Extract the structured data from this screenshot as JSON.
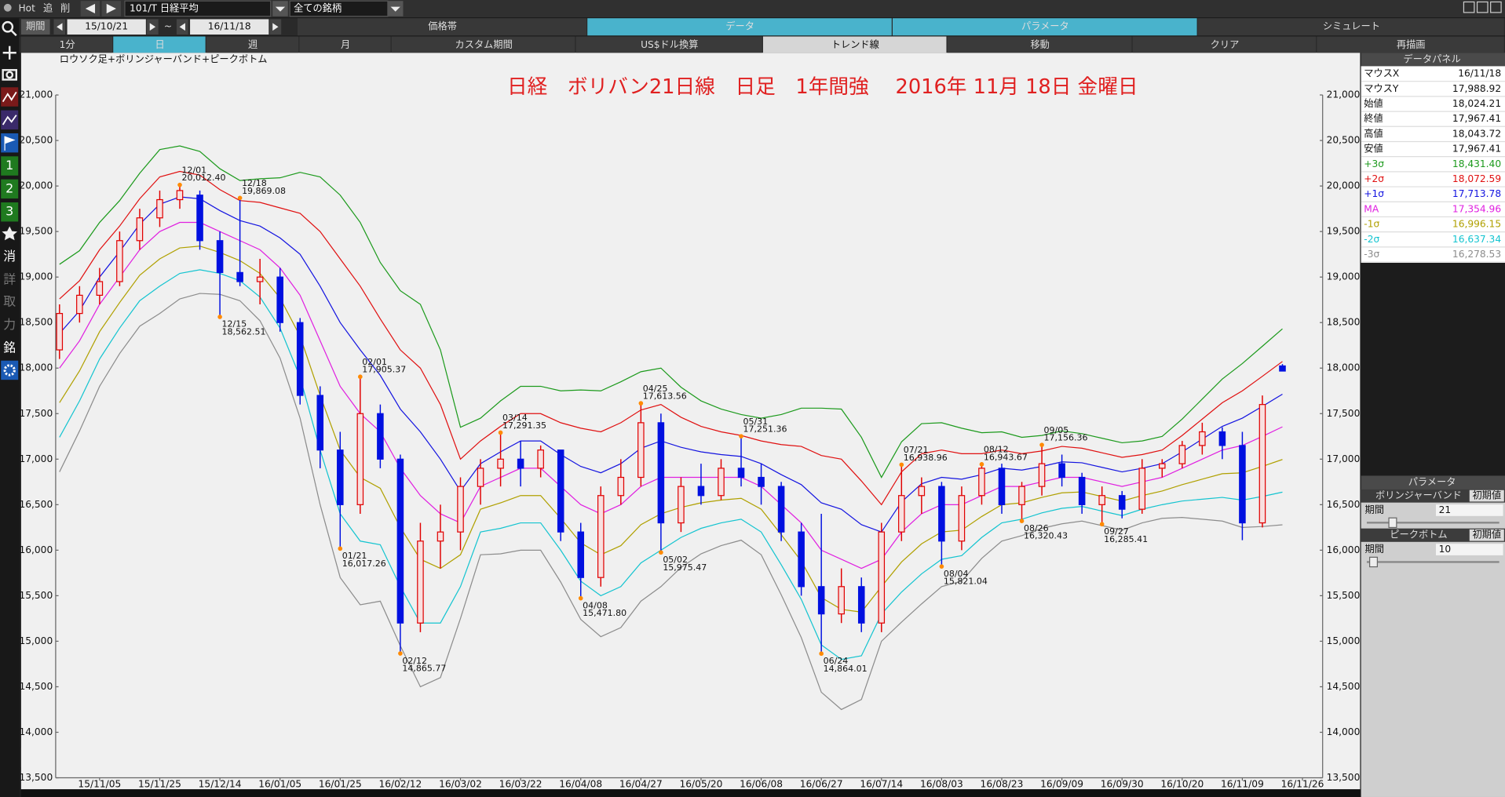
{
  "toolbar": {
    "quick": [
      "Hot",
      "追",
      "削"
    ],
    "symbol": "101/T 日経平均",
    "universe": "全ての銘柄",
    "period_label": "期間",
    "from": "15/10/21",
    "tilde": "~",
    "to": "16/11/18",
    "tabs": [
      "価格帯",
      "データ",
      "パラメータ",
      "シミュレート"
    ],
    "buttons": [
      "1分",
      "日",
      "週",
      "月",
      "カスタム期間",
      "US$ドル換算",
      "トレンド線",
      "移動",
      "クリア",
      "再描画"
    ]
  },
  "sidebar": [
    "1",
    "2",
    "3",
    "消",
    "詳",
    "取",
    "力",
    "銘"
  ],
  "data_panel": {
    "title": "データパネル",
    "rows": [
      [
        "マウスX",
        "16/11/18"
      ],
      [
        "マウスY",
        "17,988.92"
      ],
      [
        "始値",
        "18,024.21"
      ],
      [
        "終値",
        "17,967.41"
      ],
      [
        "高値",
        "18,043.72"
      ],
      [
        "安値",
        "17,967.41"
      ]
    ],
    "band_values": [
      "18,431.40",
      "18,072.59",
      "17,713.78",
      "17,354.96",
      "16,996.15",
      "16,637.34",
      "16,278.53"
    ]
  },
  "parameter_panel": {
    "title": "パラメータ",
    "groups": [
      {
        "name": "ボリンジャーバンド",
        "reset": "初期値",
        "label": "期間",
        "value": "21"
      },
      {
        "name": "ピークボトム",
        "reset": "初期値",
        "label": "期間",
        "value": "10"
      }
    ]
  },
  "chart_data": {
    "type": "candlestick",
    "title": "日経　ボリバン21日線　日足　1年間強　 2016年 11月 18日 金曜日",
    "subtitle": "ロウソク足+ボリンジャーバンド+ピークボトム",
    "up_color": "#e00000",
    "down_color": "#0010e0",
    "categories": [
      null,
      null,
      "15/11/05",
      null,
      null,
      "15/11/25",
      null,
      null,
      "15/12/14",
      null,
      null,
      "16/01/05",
      null,
      null,
      "16/01/25",
      null,
      null,
      "16/02/12",
      null,
      null,
      "16/03/02",
      null,
      null,
      "16/03/22",
      null,
      null,
      "16/04/08",
      null,
      null,
      "16/04/27",
      null,
      null,
      "16/05/20",
      null,
      null,
      "16/06/08",
      null,
      null,
      "16/06/27",
      null,
      null,
      "16/07/14",
      null,
      null,
      "16/08/03",
      null,
      null,
      "16/08/23",
      null,
      null,
      "16/09/09",
      null,
      null,
      "16/09/30",
      null,
      null,
      "16/10/20",
      null,
      null,
      "16/11/09",
      null,
      null,
      "16/11/26"
    ],
    "open": [
      18200,
      18600,
      18800,
      18950,
      19400,
      19650,
      19850,
      19900,
      19400,
      19050,
      18950,
      19000,
      18500,
      17700,
      17100,
      16500,
      17500,
      17000,
      15200,
      16100,
      16200,
      16700,
      16900,
      17000,
      16900,
      17100,
      16200,
      15700,
      16600,
      16800,
      17400,
      16300,
      16700,
      16600,
      16900,
      16800,
      16700,
      16200,
      15600,
      15300,
      15600,
      15200,
      16200,
      16600,
      16700,
      16100,
      16600,
      16900,
      16500,
      16700,
      16950,
      16800,
      16500,
      16600,
      16450,
      16900,
      16950,
      17150,
      17300,
      17150,
      16300,
      18024.21,
      null
    ],
    "high": [
      18700,
      18900,
      19100,
      19500,
      19750,
      19950,
      20012.4,
      19950,
      19500,
      19869.08,
      19200,
      19100,
      18550,
      17800,
      17300,
      17905.37,
      17600,
      17050,
      16300,
      16500,
      16800,
      17000,
      17291.35,
      17200,
      17150,
      17100,
      16300,
      16700,
      17000,
      17613.56,
      17500,
      16800,
      16950,
      17000,
      17251.36,
      16950,
      16750,
      16300,
      16400,
      15800,
      15700,
      16300,
      16938.96,
      16800,
      16750,
      16700,
      16943.67,
      16950,
      16750,
      17156.36,
      17050,
      16850,
      16700,
      16650,
      17000,
      17000,
      17200,
      17400,
      17350,
      17300,
      17700,
      18043.72,
      null
    ],
    "low": [
      18100,
      18500,
      18700,
      18900,
      19300,
      19550,
      19750,
      19300,
      18562.51,
      18900,
      18700,
      18400,
      17600,
      16900,
      16017.26,
      16400,
      16900,
      14865.77,
      15100,
      15800,
      16000,
      16500,
      16700,
      16700,
      16800,
      16100,
      15471.8,
      15600,
      16500,
      16700,
      15975.47,
      16200,
      16500,
      16550,
      16700,
      16500,
      16100,
      15500,
      14864.01,
      15200,
      15100,
      15100,
      16100,
      16400,
      15821.04,
      16000,
      16500,
      16400,
      16320.43,
      16600,
      16700,
      16400,
      16285.41,
      16350,
      16400,
      16800,
      16900,
      17050,
      17000,
      16110,
      16250,
      17967.41,
      null
    ],
    "close": [
      18600,
      18800,
      18950,
      19400,
      19650,
      19850,
      19950,
      19400,
      19050,
      18950,
      19000,
      18500,
      17700,
      17100,
      16500,
      17500,
      17000,
      15200,
      16100,
      16200,
      16700,
      16900,
      17000,
      16900,
      17100,
      16200,
      15700,
      16600,
      16800,
      17400,
      16300,
      16700,
      16600,
      16900,
      16800,
      16700,
      16200,
      15600,
      15300,
      15600,
      15200,
      16200,
      16600,
      16700,
      16100,
      16600,
      16900,
      16500,
      16700,
      16950,
      16800,
      16500,
      16600,
      16450,
      16900,
      16950,
      17150,
      17300,
      17150,
      16300,
      17600,
      17967.41,
      null
    ],
    "series": [
      {
        "name": "+3σ",
        "color": "#1c9a1c",
        "values": [
          19140,
          19290,
          19600,
          19840,
          20140,
          20400,
          20440,
          20380,
          20190,
          20060,
          20080,
          20090,
          20150,
          20100,
          19900,
          19600,
          19160,
          18850,
          18700,
          18200,
          17350,
          17450,
          17640,
          17800,
          17800,
          17750,
          17760,
          17750,
          17850,
          17960,
          18000,
          17790,
          17640,
          17550,
          17490,
          17450,
          17490,
          17560,
          17560,
          17550,
          17240,
          16800,
          17190,
          17390,
          17400,
          17340,
          17290,
          17300,
          17240,
          17260,
          17310,
          17280,
          17230,
          17180,
          17200,
          17250,
          17440,
          17660,
          17880,
          18050,
          18240,
          18431.4,
          null
        ]
      },
      {
        "name": "+2σ",
        "color": "#e01010",
        "values": [
          18760,
          18960,
          19300,
          19560,
          19860,
          20100,
          20160,
          20120,
          19960,
          19840,
          19820,
          19760,
          19700,
          19500,
          19200,
          18900,
          18540,
          18200,
          18000,
          17600,
          17000,
          17200,
          17360,
          17500,
          17500,
          17400,
          17340,
          17300,
          17400,
          17540,
          17600,
          17460,
          17360,
          17300,
          17260,
          17200,
          17160,
          17140,
          17040,
          17000,
          16760,
          16500,
          16860,
          17060,
          17100,
          17060,
          17060,
          17100,
          17060,
          17090,
          17140,
          17120,
          17070,
          17020,
          17050,
          17100,
          17260,
          17440,
          17620,
          17750,
          17910,
          18072.59,
          null
        ]
      },
      {
        "name": "+1σ",
        "color": "#1414e0",
        "values": [
          18380,
          18630,
          19000,
          19280,
          19580,
          19800,
          19880,
          19860,
          19730,
          19620,
          19560,
          19430,
          19250,
          18900,
          18500,
          18200,
          17920,
          17550,
          17300,
          17000,
          16650,
          16950,
          17080,
          17200,
          17200,
          17050,
          16920,
          16850,
          16950,
          17120,
          17200,
          17130,
          17080,
          17050,
          17030,
          16950,
          16830,
          16720,
          16520,
          16450,
          16280,
          16200,
          16530,
          16730,
          16800,
          16780,
          16830,
          16900,
          16880,
          16920,
          16970,
          16960,
          16910,
          16860,
          16900,
          16950,
          17080,
          17220,
          17360,
          17450,
          17580,
          17713.78,
          null
        ]
      },
      {
        "name": "MA",
        "color": "#e020e0",
        "values": [
          18000,
          18300,
          18700,
          19000,
          19300,
          19500,
          19600,
          19600,
          19500,
          19400,
          19300,
          19100,
          18800,
          18300,
          17800,
          17500,
          17300,
          16900,
          16600,
          16400,
          16300,
          16700,
          16800,
          16900,
          16900,
          16700,
          16500,
          16400,
          16500,
          16700,
          16800,
          16800,
          16800,
          16800,
          16800,
          16700,
          16500,
          16300,
          16000,
          15900,
          15800,
          15900,
          16200,
          16400,
          16500,
          16500,
          16600,
          16700,
          16700,
          16750,
          16800,
          16800,
          16750,
          16700,
          16750,
          16800,
          16900,
          17000,
          17100,
          17150,
          17250,
          17354.96,
          null
        ]
      },
      {
        "name": "-1σ",
        "color": "#b0a000",
        "values": [
          17620,
          17970,
          18400,
          18720,
          19020,
          19200,
          19320,
          19340,
          19270,
          19180,
          19040,
          18770,
          18350,
          17700,
          17100,
          16800,
          16680,
          16250,
          15900,
          15800,
          15950,
          16450,
          16520,
          16600,
          16600,
          16350,
          16080,
          15950,
          16050,
          16280,
          16400,
          16470,
          16520,
          16550,
          16570,
          16450,
          16170,
          15880,
          15480,
          15350,
          15320,
          15600,
          15870,
          16070,
          16200,
          16220,
          16370,
          16500,
          16520,
          16580,
          16630,
          16640,
          16590,
          16540,
          16600,
          16650,
          16720,
          16780,
          16840,
          16850,
          16920,
          16996.15,
          null
        ]
      },
      {
        "name": "-2σ",
        "color": "#14c4d0",
        "values": [
          17240,
          17640,
          18100,
          18440,
          18740,
          18900,
          19040,
          19080,
          19040,
          18960,
          18780,
          18440,
          17900,
          17100,
          16400,
          16100,
          16060,
          15600,
          15200,
          15200,
          15600,
          16200,
          16240,
          16300,
          16300,
          16000,
          15660,
          15500,
          15600,
          15860,
          16000,
          16140,
          16240,
          16300,
          16340,
          16200,
          15840,
          15460,
          14960,
          14800,
          14840,
          15300,
          15540,
          15740,
          15900,
          15940,
          16140,
          16300,
          16340,
          16410,
          16460,
          16480,
          16430,
          16380,
          16450,
          16500,
          16540,
          16560,
          16580,
          16550,
          16590,
          16637.34,
          null
        ]
      },
      {
        "name": "-3σ",
        "color": "#8c8c8c",
        "values": [
          16860,
          17310,
          17800,
          18160,
          18460,
          18600,
          18760,
          18820,
          18810,
          18740,
          18520,
          18110,
          17450,
          16500,
          15700,
          15400,
          15440,
          14950,
          14500,
          14600,
          15250,
          15950,
          15960,
          16000,
          16000,
          15650,
          15240,
          15050,
          15150,
          15440,
          15600,
          15810,
          15960,
          16050,
          16110,
          15950,
          15510,
          15040,
          14440,
          14250,
          14360,
          15000,
          15210,
          15410,
          15600,
          15660,
          15910,
          16100,
          16160,
          16240,
          16290,
          16320,
          16270,
          16220,
          16300,
          16350,
          16360,
          16340,
          16320,
          16250,
          16260,
          16278.53,
          null
        ]
      }
    ],
    "annotations": [
      {
        "date": "12/01",
        "value": 20012.4,
        "label": "20,012.40"
      },
      {
        "date": "12/15",
        "value": 18562.51,
        "label": "18,562.51"
      },
      {
        "date": "12/18",
        "value": 19869.08,
        "label": "19,869.08"
      },
      {
        "date": "01/21",
        "value": 16017.26,
        "label": "16,017.26"
      },
      {
        "date": "02/01",
        "value": 17905.37,
        "label": "17,905.37"
      },
      {
        "date": "02/12",
        "value": 14865.77,
        "label": "14,865.77"
      },
      {
        "date": "03/14",
        "value": 17291.35,
        "label": "17,291.35"
      },
      {
        "date": "04/08",
        "value": 15471.8,
        "label": "15,471.80"
      },
      {
        "date": "04/25",
        "value": 17613.56,
        "label": "17,613.56"
      },
      {
        "date": "05/02",
        "value": 15975.47,
        "label": "15,975.47"
      },
      {
        "date": "05/31",
        "value": 17251.36,
        "label": "17,251.36"
      },
      {
        "date": "06/24",
        "value": 14864.01,
        "label": "14,864.01"
      },
      {
        "date": "07/21",
        "value": 16938.96,
        "label": "16,938.96"
      },
      {
        "date": "08/04",
        "value": 15821.04,
        "label": "15,821.04"
      },
      {
        "date": "08/12",
        "value": 16943.67,
        "label": "16,943.67"
      },
      {
        "date": "08/26",
        "value": 16320.43,
        "label": "16,320.43"
      },
      {
        "date": "09/05",
        "value": 17156.36,
        "label": "17,156.36"
      },
      {
        "date": "09/27",
        "value": 16285.41,
        "label": "16,285.41"
      }
    ],
    "ylim": [
      13500,
      21000
    ],
    "yticks": [
      {
        "value": 13500,
        "label": "13,500"
      },
      {
        "value": 14000,
        "label": "14,000"
      },
      {
        "value": 14500,
        "label": "14,500"
      },
      {
        "value": 15000,
        "label": "15,000"
      },
      {
        "value": 15500,
        "label": "15,500"
      },
      {
        "value": 16000,
        "label": "16,000"
      },
      {
        "value": 16500,
        "label": "16,500"
      },
      {
        "value": 17000,
        "label": "17,000"
      },
      {
        "value": 17500,
        "label": "17,500"
      },
      {
        "value": 18000,
        "label": "18,000"
      },
      {
        "value": 18500,
        "label": "18,500"
      },
      {
        "value": 19000,
        "label": "19,000"
      },
      {
        "value": 19500,
        "label": "19,500"
      },
      {
        "value": 20000,
        "label": "20,000"
      },
      {
        "value": 20500,
        "label": "20,500"
      },
      {
        "value": 21000,
        "label": "21,000"
      }
    ]
  }
}
